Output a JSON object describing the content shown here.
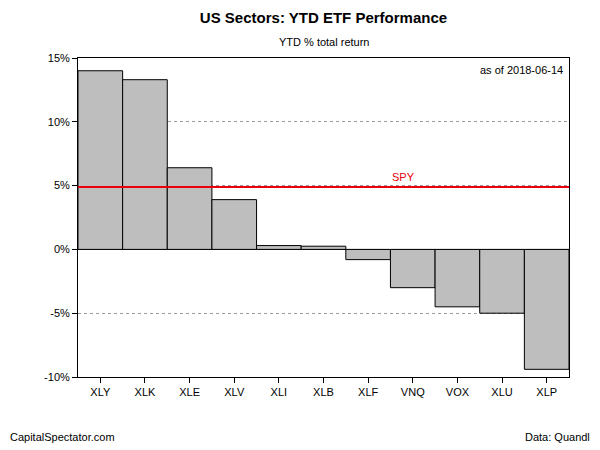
{
  "chart_data": {
    "type": "bar",
    "title": "US Sectors: YTD ETF Performance",
    "subtitle": "YTD % total return",
    "annotations": [
      "as of 2018-06-14"
    ],
    "footer": {
      "left": "CapitalSpectator.com",
      "right": "Data: Quandl"
    },
    "categories": [
      "XLY",
      "XLK",
      "XLE",
      "XLV",
      "XLI",
      "XLB",
      "XLF",
      "VNQ",
      "VOX",
      "XLU",
      "XLP"
    ],
    "values": [
      14.0,
      13.3,
      6.4,
      3.9,
      0.3,
      0.25,
      -0.8,
      -3.0,
      -4.5,
      -5.0,
      -9.4
    ],
    "color": "#bebebe",
    "benchmark": {
      "label": "SPY",
      "value": 4.9,
      "color": "#e8000b"
    },
    "ylim": [
      -10,
      15
    ],
    "yticks": [
      {
        "value": -10,
        "label": "-10%"
      },
      {
        "value": -5,
        "label": "-5%"
      },
      {
        "value": 0,
        "label": "0%"
      },
      {
        "value": 5,
        "label": "5%"
      },
      {
        "value": 10,
        "label": "10%"
      },
      {
        "value": 15,
        "label": "15%"
      }
    ],
    "grid": true
  }
}
